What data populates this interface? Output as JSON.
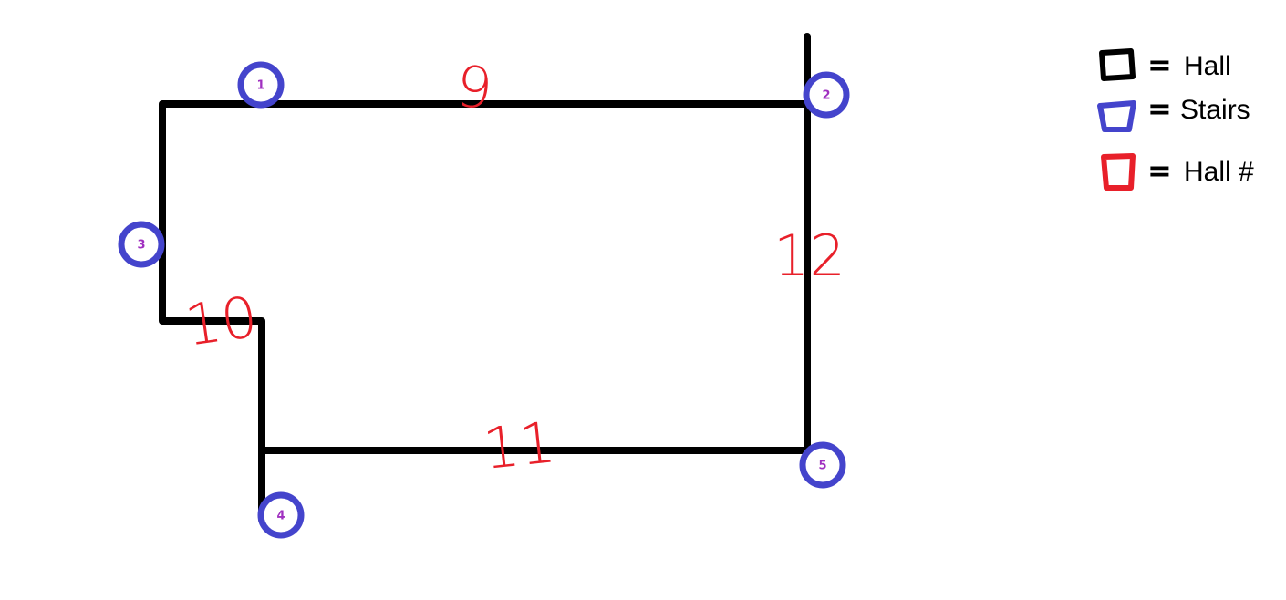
{
  "colors": {
    "hall": "#000000",
    "stairs": "#4444cc",
    "hall_number": "#e8202a",
    "stair_label": "#a030c0"
  },
  "halls": [
    {
      "id": "hall-9",
      "number": "9"
    },
    {
      "id": "hall-10",
      "number": "10"
    },
    {
      "id": "hall-11",
      "number": "11"
    },
    {
      "id": "hall-12",
      "number": "12"
    }
  ],
  "stairs": [
    {
      "id": "stairs-1",
      "label": "1"
    },
    {
      "id": "stairs-2",
      "label": "2"
    },
    {
      "id": "stairs-3",
      "label": "3"
    },
    {
      "id": "stairs-4",
      "label": "4"
    },
    {
      "id": "stairs-5",
      "label": "5"
    }
  ],
  "legend": {
    "equals": "=",
    "items": [
      {
        "key": "hall",
        "label": "Hall"
      },
      {
        "key": "stairs",
        "label": "Stairs"
      },
      {
        "key": "hall_number",
        "label": "Hall #"
      }
    ]
  }
}
